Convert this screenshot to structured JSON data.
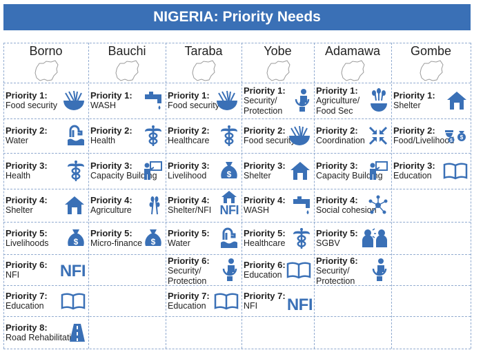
{
  "title": "NIGERIA: Priority Needs",
  "states": [
    {
      "name": "Borno",
      "priorities": [
        {
          "label": "Priority 1:",
          "need": "Food security",
          "icon": "food-bowl-icon"
        },
        {
          "label": "Priority 2:",
          "need": "Water",
          "icon": "water-tap-icon"
        },
        {
          "label": "Priority 3:",
          "need": "Health",
          "icon": "caduceus-icon"
        },
        {
          "label": "Priority 4:",
          "need": "Shelter",
          "icon": "house-icon"
        },
        {
          "label": "Priority 5:",
          "need": "Livelihoods",
          "icon": "money-bag-icon"
        },
        {
          "label": "Priority 6:",
          "need": "NFI",
          "icon": "nfi-text-icon",
          "icon_text": "NFI"
        },
        {
          "label": "Priority 7:",
          "need": "Education",
          "icon": "open-book-icon"
        },
        {
          "label": "Priority 8:",
          "need": "Road Rehabilitation",
          "icon": "road-icon"
        }
      ]
    },
    {
      "name": "Bauchi",
      "priorities": [
        {
          "label": "Priority 1:",
          "need": "WASH",
          "icon": "faucet-icon"
        },
        {
          "label": "Priority 2:",
          "need": "Health",
          "icon": "caduceus-icon"
        },
        {
          "label": "Priority 3:",
          "need": "Capacity Building",
          "icon": "teacher-board-icon"
        },
        {
          "label": "Priority 4:",
          "need": "Agriculture",
          "icon": "wheat-icon"
        },
        {
          "label": "Priority 5:",
          "need": "Micro-finance",
          "icon": "money-bag-icon"
        }
      ]
    },
    {
      "name": "Taraba",
      "priorities": [
        {
          "label": "Priority 1:",
          "need": "Food security",
          "icon": "food-bowl-icon"
        },
        {
          "label": "Priority 2:",
          "need": "Healthcare",
          "icon": "caduceus-icon"
        },
        {
          "label": "Priority 3:",
          "need": "Livelihood",
          "icon": "money-bag-icon"
        },
        {
          "label": "Priority 4:",
          "need": "Shelter/NFI",
          "icon": "house-nfi-icon",
          "icon_text": "NFI"
        },
        {
          "label": "Priority 5:",
          "need": "Water",
          "icon": "water-tap-icon"
        },
        {
          "label": "Priority 6:",
          "need": "Security/ Protection",
          "icon": "protection-icon"
        },
        {
          "label": "Priority 7:",
          "need": "Education",
          "icon": "open-book-icon"
        }
      ]
    },
    {
      "name": "Yobe",
      "priorities": [
        {
          "label": "Priority 1:",
          "need": "Security/ Protection",
          "icon": "protection-icon"
        },
        {
          "label": "Priority 2:",
          "need": "Food security",
          "icon": "food-bowl-icon"
        },
        {
          "label": "Priority 3:",
          "need": "Shelter",
          "icon": "house-icon"
        },
        {
          "label": "Priority 4:",
          "need": "WASH",
          "icon": "faucet-icon"
        },
        {
          "label": "Priority 5:",
          "need": "Healthcare",
          "icon": "caduceus-icon"
        },
        {
          "label": "Priority 6:",
          "need": "Education",
          "icon": "open-book-icon"
        },
        {
          "label": "Priority 7:",
          "need": "NFI",
          "icon": "nfi-text-icon",
          "icon_text": "NFI"
        }
      ]
    },
    {
      "name": "Adamawa",
      "priorities": [
        {
          "label": "Priority 1:",
          "need": "Agriculture/ Food Sec",
          "icon": "wheat-bowl-icon"
        },
        {
          "label": "Priority 2:",
          "need": "Coordination",
          "icon": "coordination-arrows-icon"
        },
        {
          "label": "Priority 3:",
          "need": "Capacity Building",
          "icon": "teacher-board-icon"
        },
        {
          "label": "Priority 4:",
          "need": "Social cohesion",
          "icon": "social-network-icon"
        },
        {
          "label": "Priority 5:",
          "need": "SGBV",
          "icon": "two-people-icon"
        },
        {
          "label": "Priority 6:",
          "need": "Security/ Protection",
          "icon": "protection-icon"
        }
      ]
    },
    {
      "name": "Gombe",
      "priorities": [
        {
          "label": "Priority 1:",
          "need": "Shelter",
          "icon": "house-icon"
        },
        {
          "label": "Priority 2:",
          "need": "Food/Livelihood",
          "icon": "food-money-icon"
        },
        {
          "label": "Priority 3:",
          "need": "Education",
          "icon": "open-book-icon"
        }
      ]
    }
  ],
  "colors": {
    "title_bg": "#3a70b6",
    "title_text": "#ffffff",
    "icon": "#3a70b6",
    "grid_line": "#8fa9cf"
  }
}
